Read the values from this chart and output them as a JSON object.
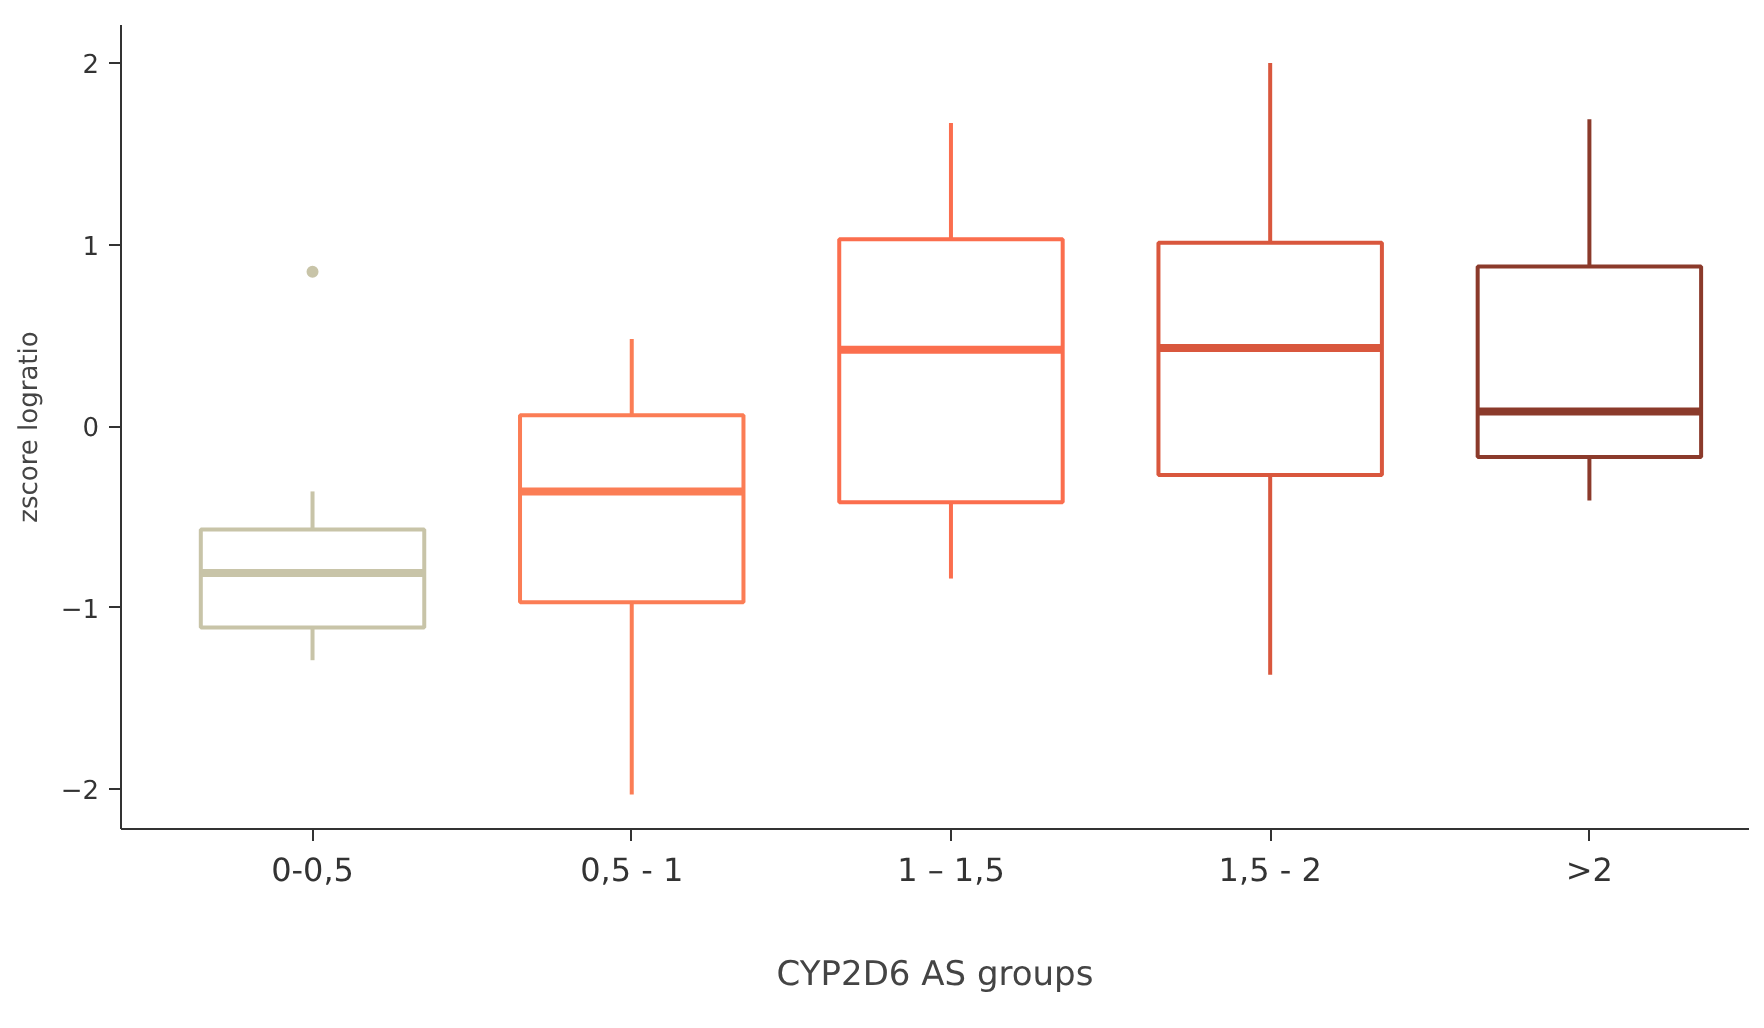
{
  "chart_data": {
    "type": "box",
    "xlabel": "CYP2D6 AS groups",
    "ylabel": "zscore logratio",
    "categories": [
      "0-0,5",
      "0,5 - 1",
      "1 – 1,5",
      "1,5 - 2",
      ">2"
    ],
    "colors": [
      "#c8c4a8",
      "#fb7d55",
      "#fb6e4e",
      "#d9573d",
      "#8b3a2b"
    ],
    "boxes": [
      {
        "low": -1.29,
        "q1": -1.11,
        "median": -0.81,
        "q3": -0.57,
        "high": -0.36,
        "outliers": [
          0.85
        ]
      },
      {
        "low": -2.03,
        "q1": -0.97,
        "median": -0.36,
        "q3": 0.06,
        "high": 0.48
      },
      {
        "low": -0.84,
        "q1": -0.42,
        "median": 0.42,
        "q3": 1.03,
        "high": 1.67
      },
      {
        "low": -1.37,
        "q1": -0.27,
        "median": 0.43,
        "q3": 1.01,
        "high": 2.0
      },
      {
        "low": -0.41,
        "q1": -0.17,
        "median": 0.08,
        "q3": 0.88,
        "high": 1.69
      }
    ],
    "ylim": [
      -2.22,
      2.21
    ],
    "yticks": [
      -2,
      -1,
      0,
      1,
      2
    ],
    "grid": false
  }
}
